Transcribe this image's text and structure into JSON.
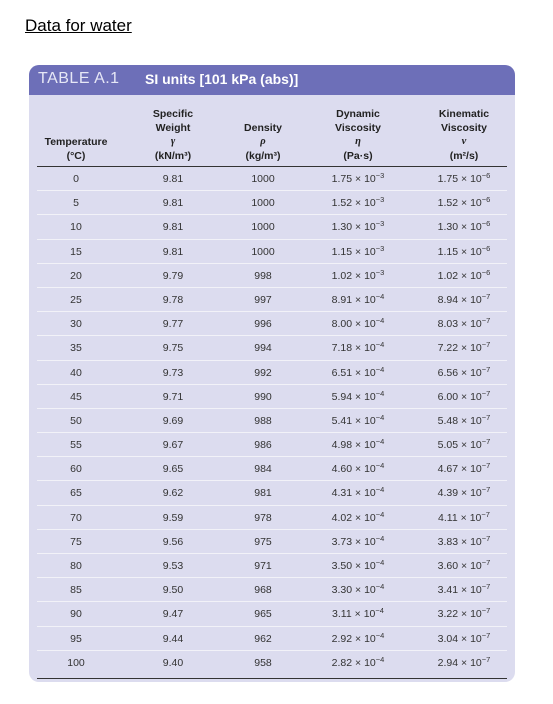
{
  "page_heading": "Data for water",
  "table": {
    "label": "TABLE A.1",
    "title": "SI units [101 kPa (abs)]",
    "columns": [
      {
        "lines": [
          "Temperature",
          "(°C)"
        ]
      },
      {
        "lines": [
          "Specific",
          "Weight",
          "γ",
          "(kN/m³)"
        ]
      },
      {
        "lines": [
          "Density",
          "ρ",
          "(kg/m³)"
        ]
      },
      {
        "lines": [
          "Dynamic",
          "Viscosity",
          "η",
          "(Pa·s)"
        ]
      },
      {
        "lines": [
          "Kinematic",
          "Viscosity",
          "ν",
          "(m²/s)"
        ]
      }
    ],
    "rows": [
      {
        "temp": "0",
        "weight": "9.81",
        "density": "1000",
        "dyn_m": "1.75",
        "dyn_e": "−3",
        "kin_m": "1.75",
        "kin_e": "−6"
      },
      {
        "temp": "5",
        "weight": "9.81",
        "density": "1000",
        "dyn_m": "1.52",
        "dyn_e": "−3",
        "kin_m": "1.52",
        "kin_e": "−6"
      },
      {
        "temp": "10",
        "weight": "9.81",
        "density": "1000",
        "dyn_m": "1.30",
        "dyn_e": "−3",
        "kin_m": "1.30",
        "kin_e": "−6"
      },
      {
        "temp": "15",
        "weight": "9.81",
        "density": "1000",
        "dyn_m": "1.15",
        "dyn_e": "−3",
        "kin_m": "1.15",
        "kin_e": "−6"
      },
      {
        "temp": "20",
        "weight": "9.79",
        "density": "998",
        "dyn_m": "1.02",
        "dyn_e": "−3",
        "kin_m": "1.02",
        "kin_e": "−6"
      },
      {
        "temp": "25",
        "weight": "9.78",
        "density": "997",
        "dyn_m": "8.91",
        "dyn_e": "−4",
        "kin_m": "8.94",
        "kin_e": "−7"
      },
      {
        "temp": "30",
        "weight": "9.77",
        "density": "996",
        "dyn_m": "8.00",
        "dyn_e": "−4",
        "kin_m": "8.03",
        "kin_e": "−7"
      },
      {
        "temp": "35",
        "weight": "9.75",
        "density": "994",
        "dyn_m": "7.18",
        "dyn_e": "−4",
        "kin_m": "7.22",
        "kin_e": "−7"
      },
      {
        "temp": "40",
        "weight": "9.73",
        "density": "992",
        "dyn_m": "6.51",
        "dyn_e": "−4",
        "kin_m": "6.56",
        "kin_e": "−7"
      },
      {
        "temp": "45",
        "weight": "9.71",
        "density": "990",
        "dyn_m": "5.94",
        "dyn_e": "−4",
        "kin_m": "6.00",
        "kin_e": "−7"
      },
      {
        "temp": "50",
        "weight": "9.69",
        "density": "988",
        "dyn_m": "5.41",
        "dyn_e": "−4",
        "kin_m": "5.48",
        "kin_e": "−7"
      },
      {
        "temp": "55",
        "weight": "9.67",
        "density": "986",
        "dyn_m": "4.98",
        "dyn_e": "−4",
        "kin_m": "5.05",
        "kin_e": "−7"
      },
      {
        "temp": "60",
        "weight": "9.65",
        "density": "984",
        "dyn_m": "4.60",
        "dyn_e": "−4",
        "kin_m": "4.67",
        "kin_e": "−7"
      },
      {
        "temp": "65",
        "weight": "9.62",
        "density": "981",
        "dyn_m": "4.31",
        "dyn_e": "−4",
        "kin_m": "4.39",
        "kin_e": "−7"
      },
      {
        "temp": "70",
        "weight": "9.59",
        "density": "978",
        "dyn_m": "4.02",
        "dyn_e": "−4",
        "kin_m": "4.11",
        "kin_e": "−7"
      },
      {
        "temp": "75",
        "weight": "9.56",
        "density": "975",
        "dyn_m": "3.73",
        "dyn_e": "−4",
        "kin_m": "3.83",
        "kin_e": "−7"
      },
      {
        "temp": "80",
        "weight": "9.53",
        "density": "971",
        "dyn_m": "3.50",
        "dyn_e": "−4",
        "kin_m": "3.60",
        "kin_e": "−7"
      },
      {
        "temp": "85",
        "weight": "9.50",
        "density": "968",
        "dyn_m": "3.30",
        "dyn_e": "−4",
        "kin_m": "3.41",
        "kin_e": "−7"
      },
      {
        "temp": "90",
        "weight": "9.47",
        "density": "965",
        "dyn_m": "3.11",
        "dyn_e": "−4",
        "kin_m": "3.22",
        "kin_e": "−7"
      },
      {
        "temp": "95",
        "weight": "9.44",
        "density": "962",
        "dyn_m": "2.92",
        "dyn_e": "−4",
        "kin_m": "3.04",
        "kin_e": "−7"
      },
      {
        "temp": "100",
        "weight": "9.40",
        "density": "958",
        "dyn_m": "2.82",
        "dyn_e": "−4",
        "kin_m": "2.94",
        "kin_e": "−7"
      }
    ],
    "sci_sep": "× 10",
    "colors": {
      "band": "#6d6fb8",
      "body": "#dcdcef"
    }
  }
}
